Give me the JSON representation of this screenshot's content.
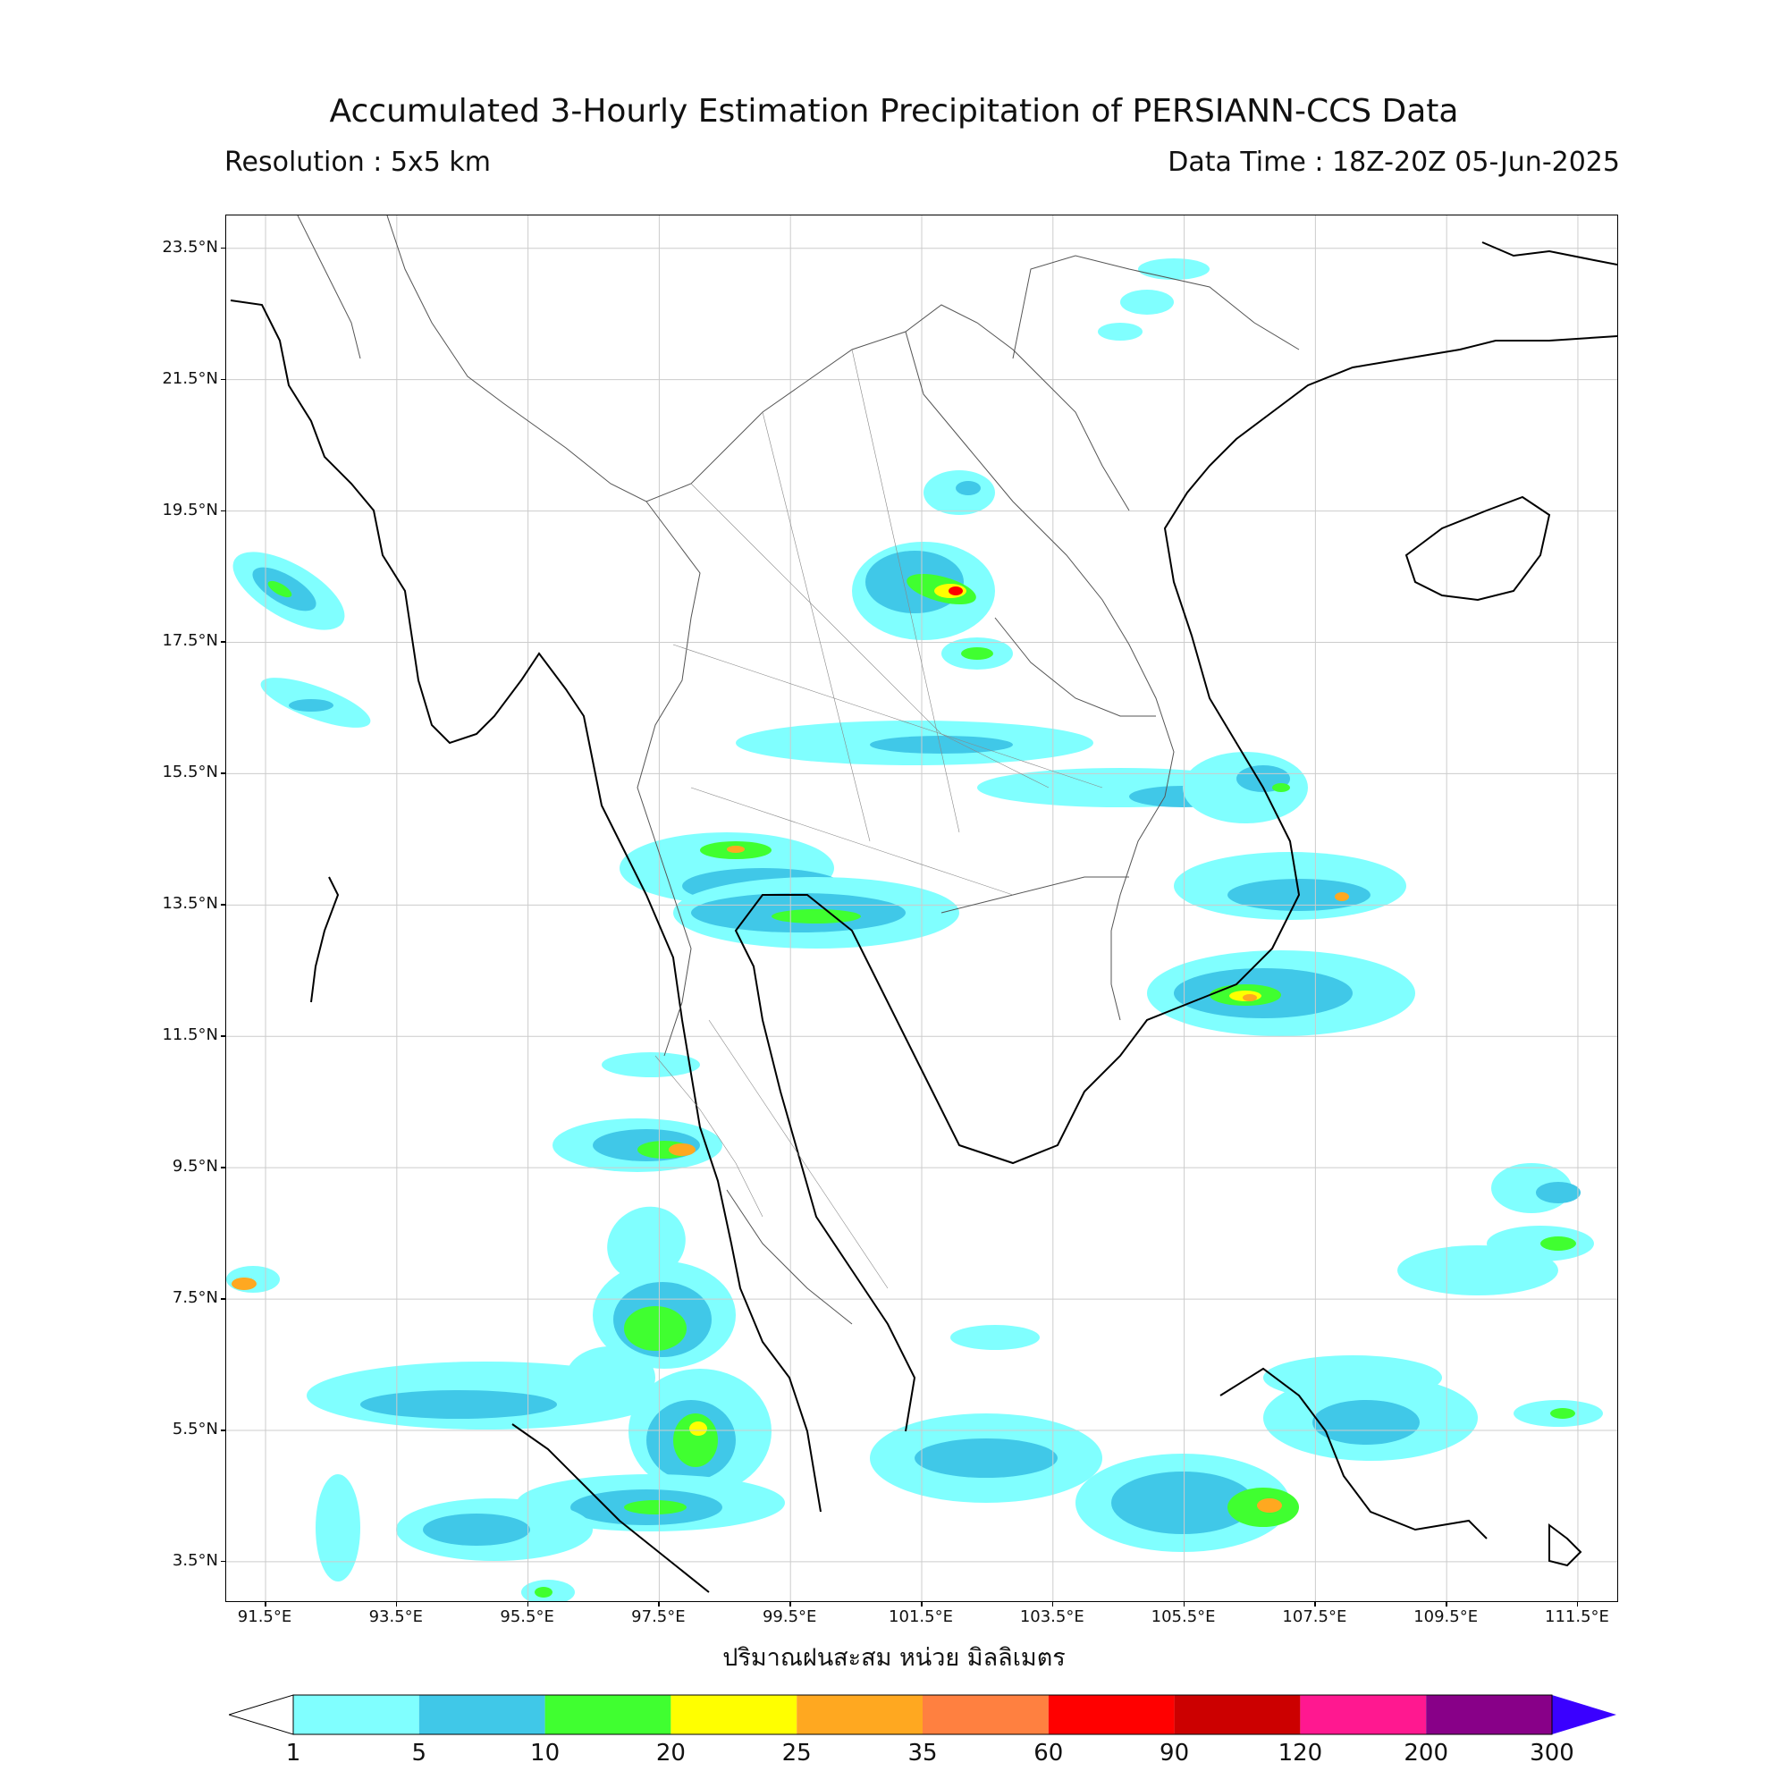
{
  "header": {
    "title": "Accumulated 3-Hourly Estimation Precipitation of PERSIANN-CCS Data",
    "resolution": "Resolution : 5x5 km",
    "data_time": "Data Time : 18Z-20Z 05-Jun-2025"
  },
  "axes": {
    "lat_labels": [
      "23.5°N",
      "21.5°N",
      "19.5°N",
      "17.5°N",
      "15.5°N",
      "13.5°N",
      "11.5°N",
      "9.5°N",
      "7.5°N",
      "5.5°N",
      "3.5°N"
    ],
    "lon_labels": [
      "91.5°E",
      "93.5°E",
      "95.5°E",
      "97.5°E",
      "99.5°E",
      "101.5°E",
      "103.5°E",
      "105.5°E",
      "107.5°E",
      "109.5°E",
      "111.5°E"
    ],
    "lat_range": [
      2.9,
      24.0
    ],
    "lon_range": [
      90.9,
      112.1
    ],
    "grid": true
  },
  "colorbar": {
    "label": "ปริมาณฝนสะสม หน่วย มิลลิเมตร",
    "ticks": [
      "1",
      "5",
      "10",
      "20",
      "25",
      "35",
      "60",
      "90",
      "120",
      "200",
      "300"
    ],
    "colors": [
      "#80ffff",
      "#40c8e8",
      "#40ff30",
      "#ffff00",
      "#ffa820",
      "#ff8040",
      "#ff0000",
      "#cc0000",
      "#ff1890",
      "#880088"
    ],
    "under_color": "#ffffff",
    "over_color": "#3a00ff"
  },
  "precip_colors": {
    "cyan": "#80ffff",
    "blue": "#40c8e8",
    "green": "#40ff30",
    "yellow": "#ffff00",
    "orange": "#ffa820",
    "red": "#ff0000"
  }
}
